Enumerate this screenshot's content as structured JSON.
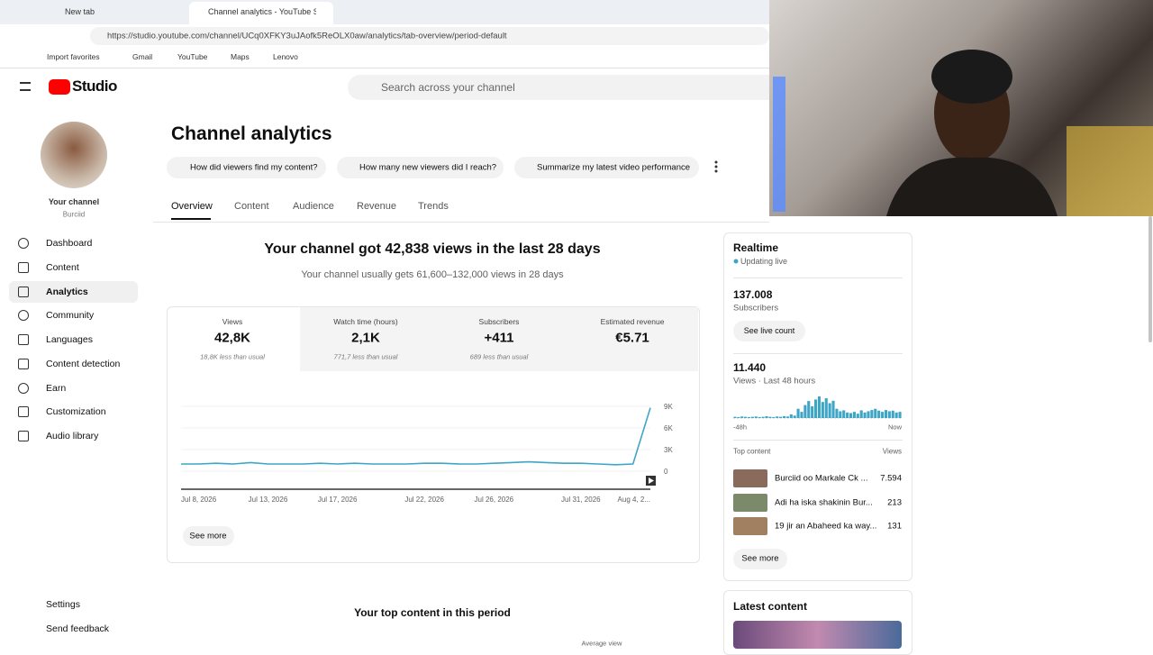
{
  "browser": {
    "tabs": [
      "New tab",
      "Channel analytics - YouTube Studio"
    ],
    "url": "https://studio.youtube.com/channel/UCq0XFKY3uJAofk5ReOLX0aw/analytics/tab-overview/period-default",
    "bookmarks": [
      "Import favorites",
      "Gmail",
      "YouTube",
      "Maps",
      "Lenovo"
    ]
  },
  "header": {
    "logo": "Studio",
    "search": "Search across your channel"
  },
  "sidebar": {
    "channel_label": "Your channel",
    "channel_name": "Burciid",
    "nav": [
      "Dashboard",
      "Content",
      "Analytics",
      "Community",
      "Languages",
      "Content detection",
      "Earn",
      "Customization",
      "Audio library"
    ],
    "bottom": [
      "Settings",
      "Send feedback"
    ]
  },
  "page": {
    "title": "Channel analytics",
    "prompts": [
      "How did viewers find my content?",
      "How many new viewers did I reach?",
      "Summarize my latest video performance"
    ],
    "tabs": [
      "Overview",
      "Content",
      "Audience",
      "Revenue",
      "Trends"
    ]
  },
  "summary": {
    "headline": "Your channel got 42,838 views in the last 28 days",
    "subline": "Your channel usually gets 61,600–132,000 views in 28 days"
  },
  "metrics": [
    {
      "label": "Views",
      "value": "42,8K",
      "note": "18,8K less than usual"
    },
    {
      "label": "Watch time (hours)",
      "value": "2,1K",
      "note": "771,7 less than usual"
    },
    {
      "label": "Subscribers",
      "value": "+411",
      "note": "689 less than usual"
    },
    {
      "label": "Estimated revenue",
      "value": "€5.71"
    }
  ],
  "chart_data": {
    "type": "line",
    "x": [
      "Jul 8, 2026",
      null,
      null,
      null,
      null,
      "Jul 13, 2026",
      null,
      null,
      null,
      "Jul 17, 2026",
      null,
      null,
      null,
      null,
      "Jul 22, 2026",
      null,
      null,
      null,
      "Jul 26, 2026",
      null,
      null,
      null,
      null,
      "Jul 31, 2026",
      null,
      null,
      null,
      "Aug 4, 2..."
    ],
    "series": [
      {
        "color": "#3ea6c4",
        "values": [
          1000,
          1000,
          1100,
          1000,
          1200,
          1000,
          1000,
          1000,
          1100,
          1000,
          1100,
          1000,
          1000,
          1000,
          1100,
          1100,
          1000,
          1000,
          1100,
          1200,
          1300,
          1200,
          1100,
          1100,
          1000,
          900,
          1000,
          8800
        ]
      }
    ],
    "ylim": [
      0,
      9000
    ],
    "yticks": [
      {
        "value": 0,
        "label": "0"
      },
      {
        "value": 3000,
        "label": "3K"
      },
      {
        "value": 6000,
        "label": "6K"
      },
      {
        "value": 9000,
        "label": "9K"
      }
    ],
    "grid": true
  },
  "see_more": "See more",
  "realtime": {
    "title": "Realtime",
    "status": "Updating live",
    "subscribers": "137.008",
    "subscribers_label": "Subscribers",
    "live_button": "See live count",
    "views": "11.440",
    "views_label": "Views · Last 48 hours",
    "chart": {
      "type": "bar",
      "color": "#3ea6c4",
      "values": [
        40,
        30,
        50,
        40,
        30,
        40,
        50,
        30,
        40,
        60,
        40,
        30,
        50,
        40,
        60,
        50,
        120,
        80,
        300,
        200,
        420,
        550,
        380,
        600,
        700,
        520,
        640,
        480,
        560,
        300,
        220,
        250,
        180,
        160,
        200,
        140,
        250,
        180,
        220,
        260,
        300,
        240,
        200,
        260,
        220,
        240,
        180,
        200
      ]
    },
    "start_label": "-48h",
    "end_label": "Now",
    "top_label": "Top content",
    "views_col": "Views",
    "top": [
      {
        "title": "Burciid oo Markale Ck ...",
        "views": "7.594"
      },
      {
        "title": "Adi ha iska shakinin Bur...",
        "views": "213"
      },
      {
        "title": "19 jir an Abaheed ka way...",
        "views": "131"
      }
    ],
    "see_more": "See more"
  },
  "latest": {
    "title": "Latest content"
  },
  "top_content": {
    "title": "Your top content in this period",
    "column": "Average view"
  }
}
